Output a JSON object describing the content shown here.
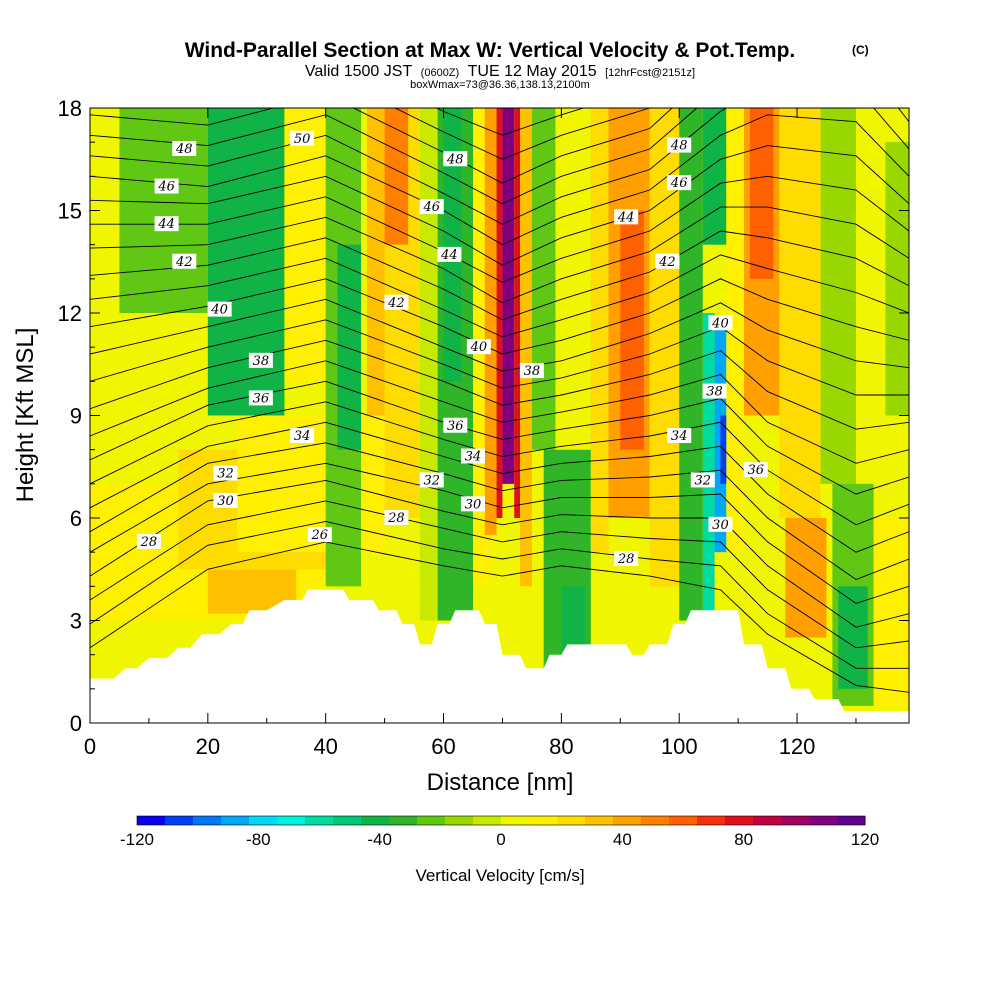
{
  "chart_data": {
    "type": "heatmap",
    "title": "Wind-Parallel Section at Max W: Vertical Velocity & Pot.Temp.",
    "title_mark": "(C)",
    "subtitle": {
      "valid": "Valid 1500 JST",
      "z": "(0600Z)",
      "date": "TUE 12 May 2015",
      "fcst": "[12hrFcst@2151z]",
      "box": "boxWmax=73@36.36,138.13,2100m"
    },
    "xlabel": "Distance [nm]",
    "ylabel": "Height [Kft MSL]",
    "xlim": [
      0,
      139
    ],
    "ylim": [
      0,
      18
    ],
    "x_ticks": [
      0,
      20,
      40,
      60,
      80,
      100,
      120
    ],
    "y_ticks": [
      0,
      3,
      6,
      9,
      12,
      15,
      18
    ],
    "colorbar": {
      "label": "Vertical Velocity [cm/s]",
      "min": -120,
      "max": 120,
      "ticks": [
        -120,
        -80,
        -40,
        0,
        40,
        80,
        120
      ],
      "colors": [
        "#0a00f0",
        "#0040f5",
        "#0078f5",
        "#00a8f5",
        "#00d8f5",
        "#00f0d8",
        "#00dca0",
        "#00c878",
        "#10b446",
        "#30b428",
        "#60c814",
        "#98d800",
        "#c8ea00",
        "#f0f500",
        "#fff000",
        "#ffdc00",
        "#ffc000",
        "#ffa000",
        "#ff8000",
        "#ff6000",
        "#f53010",
        "#e01020",
        "#c00040",
        "#a00060",
        "#800080",
        "#600090"
      ]
    },
    "cells": [
      {
        "x0": 0,
        "x1": 139,
        "y0": 0,
        "y1": 18,
        "w": 5
      },
      {
        "x0": 0,
        "x1": 40,
        "y0": 3,
        "y1": 7,
        "w": 15
      },
      {
        "x0": 20,
        "x1": 35,
        "y0": 3.2,
        "y1": 4.5,
        "w": 30
      },
      {
        "x0": 15,
        "x1": 40,
        "y0": 4.5,
        "y1": 8,
        "w": 20
      },
      {
        "x0": 25,
        "x1": 50,
        "y0": 5,
        "y1": 9,
        "w": 10
      },
      {
        "x0": 5,
        "x1": 20,
        "y0": 12,
        "y1": 18,
        "w": -25
      },
      {
        "x0": 20,
        "x1": 33,
        "y0": 9,
        "y1": 18,
        "w": -38
      },
      {
        "x0": 22,
        "x1": 30,
        "y0": 14,
        "y1": 18,
        "w": -45
      },
      {
        "x0": 33,
        "x1": 40,
        "y0": 10,
        "y1": 18,
        "w": 10
      },
      {
        "x0": 40,
        "x1": 46,
        "y0": 4,
        "y1": 18,
        "w": -25
      },
      {
        "x0": 42,
        "x1": 46,
        "y0": 8,
        "y1": 14,
        "w": -40
      },
      {
        "x0": 47,
        "x1": 52,
        "y0": 9,
        "y1": 18,
        "w": 35
      },
      {
        "x0": 50,
        "x1": 56,
        "y0": 6,
        "y1": 18,
        "w": 20
      },
      {
        "x0": 50,
        "x1": 54,
        "y0": 14,
        "y1": 18,
        "w": 55
      },
      {
        "x0": 56,
        "x1": 59,
        "y0": 3,
        "y1": 18,
        "w": -5
      },
      {
        "x0": 59,
        "x1": 65,
        "y0": 3,
        "y1": 18,
        "w": -30
      },
      {
        "x0": 60,
        "x1": 63,
        "y0": 10,
        "y1": 18,
        "w": -45
      },
      {
        "x0": 65,
        "x1": 68,
        "y0": 4,
        "y1": 18,
        "w": 10
      },
      {
        "x0": 67,
        "x1": 69,
        "y0": 5.5,
        "y1": 18,
        "w": 45
      },
      {
        "x0": 69,
        "x1": 70,
        "y0": 6,
        "y1": 18,
        "w": 80
      },
      {
        "x0": 70,
        "x1": 72,
        "y0": 7,
        "y1": 18,
        "w": 105
      },
      {
        "x0": 72,
        "x1": 73,
        "y0": 6,
        "y1": 18,
        "w": 75
      },
      {
        "x0": 73,
        "x1": 75,
        "y0": 4,
        "y1": 18,
        "w": 35
      },
      {
        "x0": 75,
        "x1": 79,
        "y0": 8,
        "y1": 18,
        "w": -25
      },
      {
        "x0": 77,
        "x1": 85,
        "y0": 1.5,
        "y1": 8,
        "w": -30
      },
      {
        "x0": 80,
        "x1": 84,
        "y0": 1.5,
        "y1": 4,
        "w": -45
      },
      {
        "x0": 79,
        "x1": 86,
        "y0": 8,
        "y1": 18,
        "w": 5
      },
      {
        "x0": 85,
        "x1": 88,
        "y0": 5,
        "y1": 18,
        "w": 25
      },
      {
        "x0": 88,
        "x1": 95,
        "y0": 6,
        "y1": 18,
        "w": 45
      },
      {
        "x0": 90,
        "x1": 94,
        "y0": 8,
        "y1": 15,
        "w": 60
      },
      {
        "x0": 95,
        "x1": 100,
        "y0": 4,
        "y1": 18,
        "w": 25
      },
      {
        "x0": 100,
        "x1": 104,
        "y0": 3,
        "y1": 18,
        "w": -35
      },
      {
        "x0": 104,
        "x1": 106,
        "y0": 3,
        "y1": 12,
        "w": -60
      },
      {
        "x0": 106,
        "x1": 108,
        "y0": 5,
        "y1": 11.5,
        "w": -85
      },
      {
        "x0": 107,
        "x1": 108,
        "y0": 7,
        "y1": 9,
        "w": -105
      },
      {
        "x0": 104,
        "x1": 108,
        "y0": 14,
        "y1": 18,
        "w": -40
      },
      {
        "x0": 108,
        "x1": 111,
        "y0": 5,
        "y1": 18,
        "w": 15
      },
      {
        "x0": 111,
        "x1": 117,
        "y0": 9,
        "y1": 18,
        "w": 45
      },
      {
        "x0": 112,
        "x1": 116,
        "y0": 13,
        "y1": 18,
        "w": 60
      },
      {
        "x0": 117,
        "x1": 124,
        "y0": 6,
        "y1": 18,
        "w": 25
      },
      {
        "x0": 118,
        "x1": 125,
        "y0": 2.5,
        "y1": 6,
        "w": 40
      },
      {
        "x0": 124,
        "x1": 130,
        "y0": 7,
        "y1": 18,
        "w": -10
      },
      {
        "x0": 126,
        "x1": 133,
        "y0": 0.5,
        "y1": 7,
        "w": -25
      },
      {
        "x0": 127,
        "x1": 132,
        "y0": 1,
        "y1": 4,
        "w": -45
      },
      {
        "x0": 133,
        "x1": 139,
        "y0": 0.5,
        "y1": 6,
        "w": 10
      },
      {
        "x0": 135,
        "x1": 139,
        "y0": 9,
        "y1": 17,
        "w": -15
      }
    ],
    "terrain": [
      [
        0,
        1.3
      ],
      [
        4,
        1.3
      ],
      [
        6,
        1.6
      ],
      [
        8,
        1.6
      ],
      [
        10,
        1.9
      ],
      [
        13,
        1.9
      ],
      [
        15,
        2.2
      ],
      [
        17,
        2.2
      ],
      [
        19,
        2.6
      ],
      [
        22,
        2.6
      ],
      [
        24,
        2.9
      ],
      [
        26,
        2.9
      ],
      [
        27,
        3.3
      ],
      [
        30,
        3.3
      ],
      [
        33,
        3.6
      ],
      [
        36,
        3.6
      ],
      [
        37,
        3.9
      ],
      [
        43,
        3.9
      ],
      [
        44,
        3.6
      ],
      [
        48,
        3.6
      ],
      [
        49,
        3.3
      ],
      [
        52,
        3.3
      ],
      [
        53,
        2.9
      ],
      [
        55,
        2.9
      ],
      [
        56,
        2.3
      ],
      [
        58,
        2.3
      ],
      [
        59,
        2.9
      ],
      [
        61,
        2.9
      ],
      [
        62,
        3.3
      ],
      [
        66,
        3.3
      ],
      [
        67,
        2.9
      ],
      [
        69,
        2.9
      ],
      [
        70,
        2.0
      ],
      [
        73,
        2.0
      ],
      [
        74,
        1.6
      ],
      [
        77,
        1.6
      ],
      [
        78,
        2.0
      ],
      [
        80,
        2.0
      ],
      [
        81,
        2.3
      ],
      [
        85,
        2.3
      ],
      [
        86,
        2.3
      ],
      [
        91,
        2.3
      ],
      [
        92,
        2.0
      ],
      [
        94,
        2.0
      ],
      [
        95,
        2.3
      ],
      [
        98,
        2.3
      ],
      [
        99,
        2.9
      ],
      [
        101,
        2.9
      ],
      [
        102,
        3.3
      ],
      [
        110,
        3.3
      ],
      [
        111,
        2.3
      ],
      [
        114,
        2.3
      ],
      [
        115,
        1.6
      ],
      [
        118,
        1.6
      ],
      [
        119,
        1.0
      ],
      [
        122,
        1.0
      ],
      [
        123,
        0.7
      ],
      [
        127,
        0.7
      ],
      [
        128,
        0.35
      ],
      [
        139,
        0.35
      ]
    ],
    "theta_levels": [
      26,
      27,
      28,
      29,
      30,
      31,
      32,
      33,
      34,
      35,
      36,
      37,
      38,
      39,
      40,
      41,
      42,
      43,
      44,
      45,
      46,
      47,
      48,
      49,
      50
    ],
    "theta_profiles": [
      {
        "x": 0,
        "heights": [
          2.2,
          2.9,
          3.6,
          4.3,
          5.0,
          5.6,
          6.3,
          7.0,
          7.7,
          8.4,
          9.2,
          10.0,
          10.8,
          11.6,
          12.4,
          13.1,
          13.9,
          14.6,
          15.3,
          16.0,
          16.6,
          17.2,
          17.8,
          18.4,
          19.0
        ]
      },
      {
        "x": 20,
        "heights": [
          4.5,
          5.2,
          5.8,
          6.5,
          7.0,
          7.6,
          8.1,
          8.7,
          9.3,
          9.8,
          10.4,
          11.0,
          11.6,
          12.2,
          12.8,
          13.4,
          14.0,
          14.6,
          15.2,
          15.7,
          16.3,
          16.9,
          17.5,
          18.1,
          18.7
        ]
      },
      {
        "x": 40,
        "heights": [
          5.3,
          5.9,
          6.5,
          7.1,
          7.6,
          8.2,
          8.8,
          9.4,
          10.0,
          10.6,
          11.2,
          11.8,
          12.4,
          13.0,
          13.6,
          14.2,
          14.8,
          15.4,
          16.0,
          16.6,
          17.2,
          17.8,
          18.4,
          19.0,
          19.6
        ]
      },
      {
        "x": 60,
        "heights": [
          4.6,
          5.1,
          5.7,
          6.2,
          6.8,
          7.3,
          7.8,
          8.3,
          8.8,
          9.4,
          10.0,
          10.5,
          11.0,
          11.6,
          12.1,
          12.7,
          13.3,
          13.8,
          14.4,
          15.0,
          15.5,
          16.1,
          16.7,
          17.3,
          17.9
        ]
      },
      {
        "x": 70,
        "heights": [
          4.3,
          4.8,
          5.3,
          5.8,
          6.3,
          6.8,
          7.3,
          7.8,
          8.3,
          8.8,
          9.3,
          9.8,
          10.3,
          10.8,
          11.3,
          11.8,
          12.3,
          12.9,
          13.4,
          14.0,
          14.6,
          15.2,
          15.8,
          16.5,
          17.2
        ]
      },
      {
        "x": 80,
        "heights": [
          4.6,
          5.1,
          5.6,
          6.1,
          6.6,
          7.1,
          7.6,
          8.1,
          8.6,
          9.1,
          9.6,
          10.1,
          10.6,
          11.2,
          11.8,
          12.4,
          13.0,
          13.6,
          14.2,
          14.8,
          15.4,
          16.0,
          16.6,
          17.2,
          17.8
        ]
      },
      {
        "x": 95,
        "heights": [
          4.3,
          4.8,
          5.4,
          6.0,
          6.6,
          7.2,
          7.8,
          8.4,
          9.0,
          9.6,
          10.2,
          10.8,
          11.4,
          12.0,
          12.6,
          13.2,
          13.8,
          14.4,
          15.0,
          15.6,
          16.2,
          16.8,
          17.4,
          18.0,
          18.6
        ]
      },
      {
        "x": 107,
        "heights": [
          3.9,
          4.6,
          5.3,
          6.0,
          6.7,
          7.4,
          8.1,
          8.8,
          9.5,
          10.2,
          10.9,
          11.6,
          12.3,
          13.0,
          13.7,
          14.4,
          15.1,
          15.8,
          16.5,
          17.2,
          17.9,
          18.6,
          19.3,
          20.0,
          20.7
        ]
      },
      {
        "x": 115,
        "heights": [
          2.6,
          3.2,
          3.9,
          4.6,
          5.3,
          6.0,
          6.7,
          7.4,
          8.1,
          8.8,
          9.7,
          10.6,
          11.5,
          12.4,
          13.3,
          14.2,
          15.1,
          16.0,
          16.9,
          17.8,
          18.7,
          19.6,
          20.5,
          21.4,
          22.3
        ]
      },
      {
        "x": 130,
        "heights": [
          1.1,
          1.6,
          2.2,
          2.8,
          3.5,
          4.2,
          5.0,
          5.8,
          6.7,
          7.6,
          8.6,
          9.6,
          10.6,
          11.6,
          12.6,
          13.6,
          14.6,
          15.6,
          16.6,
          17.6,
          18.6,
          19.6,
          20.6,
          21.6,
          22.6
        ]
      },
      {
        "x": 139,
        "heights": [
          0.9,
          1.6,
          2.4,
          3.2,
          4.0,
          4.8,
          5.6,
          6.4,
          7.2,
          8.0,
          8.8,
          9.6,
          10.4,
          11.2,
          12.0,
          12.8,
          13.6,
          14.4,
          15.2,
          16.0,
          16.8,
          17.6,
          18.4,
          19.2,
          20.0
        ]
      }
    ],
    "contour_labels": [
      {
        "text": "50",
        "x": 36,
        "y": 17.1
      },
      {
        "text": "48",
        "x": 16,
        "y": 16.8
      },
      {
        "text": "46",
        "x": 13,
        "y": 15.7
      },
      {
        "text": "44",
        "x": 13,
        "y": 14.6
      },
      {
        "text": "42",
        "x": 16,
        "y": 13.5
      },
      {
        "text": "40",
        "x": 22,
        "y": 12.1
      },
      {
        "text": "38",
        "x": 29,
        "y": 10.6
      },
      {
        "text": "36",
        "x": 29,
        "y": 9.5
      },
      {
        "text": "34",
        "x": 36,
        "y": 8.4
      },
      {
        "text": "32",
        "x": 23,
        "y": 7.3
      },
      {
        "text": "30",
        "x": 23,
        "y": 6.5
      },
      {
        "text": "28",
        "x": 10,
        "y": 5.3
      },
      {
        "text": "26",
        "x": 39,
        "y": 5.5
      },
      {
        "text": "48",
        "x": 62,
        "y": 16.5
      },
      {
        "text": "46",
        "x": 58,
        "y": 15.1
      },
      {
        "text": "44",
        "x": 61,
        "y": 13.7
      },
      {
        "text": "42",
        "x": 52,
        "y": 12.3
      },
      {
        "text": "40",
        "x": 66,
        "y": 11.0
      },
      {
        "text": "38",
        "x": 75,
        "y": 10.3
      },
      {
        "text": "36",
        "x": 62,
        "y": 8.7
      },
      {
        "text": "34",
        "x": 65,
        "y": 7.8
      },
      {
        "text": "32",
        "x": 58,
        "y": 7.1
      },
      {
        "text": "30",
        "x": 65,
        "y": 6.4
      },
      {
        "text": "28",
        "x": 52,
        "y": 6.0
      },
      {
        "text": "28",
        "x": 91,
        "y": 4.8
      },
      {
        "text": "48",
        "x": 100,
        "y": 16.9
      },
      {
        "text": "46",
        "x": 100,
        "y": 15.8
      },
      {
        "text": "44",
        "x": 91,
        "y": 14.8
      },
      {
        "text": "42",
        "x": 98,
        "y": 13.5
      },
      {
        "text": "40",
        "x": 107,
        "y": 11.7
      },
      {
        "text": "38",
        "x": 106,
        "y": 9.7
      },
      {
        "text": "34",
        "x": 100,
        "y": 8.4
      },
      {
        "text": "32",
        "x": 104,
        "y": 7.1
      },
      {
        "text": "36",
        "x": 113,
        "y": 7.4
      },
      {
        "text": "30",
        "x": 107,
        "y": 5.8
      }
    ]
  }
}
